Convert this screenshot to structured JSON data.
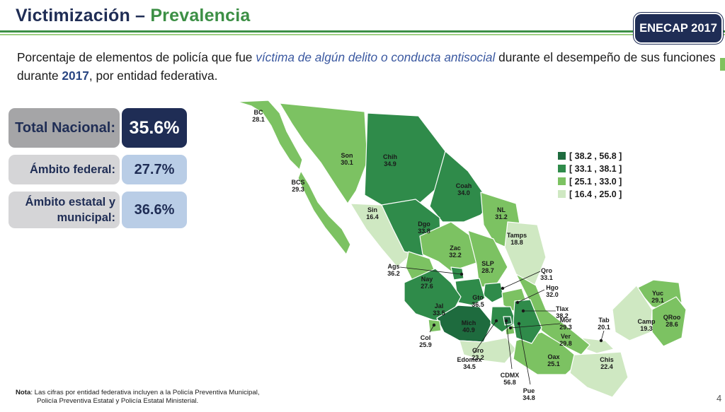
{
  "header": {
    "title_part1": "Victimización – ",
    "title_part2": "Prevalencia",
    "badge": "ENECAP 2017"
  },
  "subtitle": {
    "part1": "Porcentaje de elementos de policía que fue ",
    "highlight": "víctima de algún delito o conducta antisocial",
    "part2": " durante el desempeño de sus funciones durante ",
    "year": "2017",
    "part3": ", por entidad federativa."
  },
  "stats": {
    "total_label": "Total Nacional:",
    "total_value": "35.6%",
    "federal_label": "Ámbito federal:",
    "federal_value": "27.7%",
    "estatal_label_line1": "Ámbito estatal y",
    "estatal_label_line2": "municipal:",
    "estatal_value": "36.6%"
  },
  "legend": [
    {
      "range": "[ 38.2 , 56.8 ]",
      "color": "#1e6b3e"
    },
    {
      "range": "[ 33.1 , 38.1 ]",
      "color": "#2f8b4a"
    },
    {
      "range": "[ 25.1 , 33.0 ]",
      "color": "#7cc262"
    },
    {
      "range": "[ 16.4 , 25.0 ]",
      "color": "#cfe8c2"
    }
  ],
  "states": [
    {
      "abbr": "BC",
      "value": "28.1"
    },
    {
      "abbr": "Son",
      "value": "30.1"
    },
    {
      "abbr": "Chih",
      "value": "34.9"
    },
    {
      "abbr": "Coah",
      "value": "34.0"
    },
    {
      "abbr": "BCS",
      "value": "29.3"
    },
    {
      "abbr": "Sin",
      "value": "16.4"
    },
    {
      "abbr": "Dgo",
      "value": "33.8"
    },
    {
      "abbr": "NL",
      "value": "31.2"
    },
    {
      "abbr": "Tamps",
      "value": "18.8"
    },
    {
      "abbr": "Zac",
      "value": "32.2"
    },
    {
      "abbr": "SLP",
      "value": "28.7"
    },
    {
      "abbr": "Ags",
      "value": "36.2"
    },
    {
      "abbr": "Nay",
      "value": "27.6"
    },
    {
      "abbr": "Qro",
      "value": "33.1"
    },
    {
      "abbr": "Gto",
      "value": "36.5"
    },
    {
      "abbr": "Hgo",
      "value": "32.0"
    },
    {
      "abbr": "Jal",
      "value": "33.5"
    },
    {
      "abbr": "Tlax",
      "value": "38.2"
    },
    {
      "abbr": "Mich",
      "value": "40.9"
    },
    {
      "abbr": "Mor",
      "value": "29.3"
    },
    {
      "abbr": "Yuc",
      "value": "29.1"
    },
    {
      "abbr": "QRoo",
      "value": "28.6"
    },
    {
      "abbr": "Camp",
      "value": "19.3"
    },
    {
      "abbr": "Tab",
      "value": "20.1"
    },
    {
      "abbr": "Ver",
      "value": "29.8"
    },
    {
      "abbr": "Col",
      "value": "25.9"
    },
    {
      "abbr": "Gro",
      "value": "23.2"
    },
    {
      "abbr": "Oax",
      "value": "25.1"
    },
    {
      "abbr": "Chis",
      "value": "22.4"
    },
    {
      "abbr": "Edomex",
      "value": "34.5"
    },
    {
      "abbr": "CDMX",
      "value": "56.8"
    },
    {
      "abbr": "Pue",
      "value": "34.8"
    }
  ],
  "note": {
    "label": "Nota",
    "line1": ": Las cifras por entidad federativa incluyen a la Policía Preventiva Municipal,",
    "line2": "Policía Preventiva Estatal y Policía Estatal Ministerial."
  },
  "page_number": "4"
}
